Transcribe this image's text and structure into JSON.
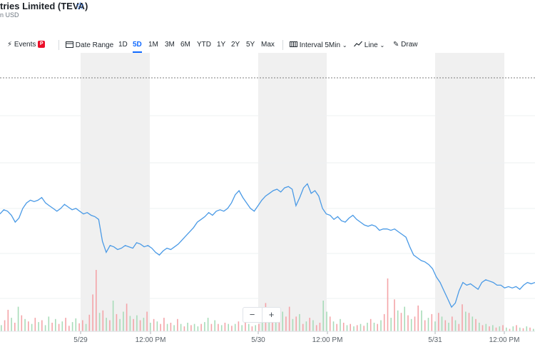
{
  "header": {
    "title": "tries Limited (TEVA)",
    "subtitle": "n USD"
  },
  "toolbar": {
    "events_label": "Events",
    "events_badge": "P",
    "date_range_label": "Date Range",
    "ranges": [
      "1D",
      "5D",
      "1M",
      "3M",
      "6M",
      "YTD",
      "1Y",
      "2Y",
      "5Y",
      "Max"
    ],
    "selected_range": "5D",
    "interval_label": "Interval",
    "interval_value": "5Min",
    "line_label": "Line",
    "draw_label": "Draw"
  },
  "zoom": {
    "minus": "−",
    "plus": "+"
  },
  "colors": {
    "line": "#4a9ae6",
    "up_volume": "#a8dcb9",
    "down_volume": "#f4a4a8",
    "shade": "#f0f0f0",
    "accent": "#0f69ff"
  },
  "chart_data": {
    "type": "line",
    "x_ticks": [
      "5/29",
      "12:00 PM",
      "5/30",
      "12:00 PM",
      "5/31",
      "12:00 PM"
    ],
    "price_series": [
      0.7,
      0.73,
      0.72,
      0.69,
      0.64,
      0.67,
      0.74,
      0.78,
      0.8,
      0.79,
      0.8,
      0.82,
      0.78,
      0.76,
      0.74,
      0.72,
      0.74,
      0.77,
      0.75,
      0.73,
      0.74,
      0.72,
      0.7,
      0.71,
      0.69,
      0.68,
      0.66,
      0.5,
      0.42,
      0.47,
      0.46,
      0.44,
      0.45,
      0.47,
      0.46,
      0.45,
      0.49,
      0.48,
      0.46,
      0.47,
      0.45,
      0.42,
      0.4,
      0.43,
      0.45,
      0.44,
      0.46,
      0.48,
      0.51,
      0.54,
      0.57,
      0.6,
      0.64,
      0.66,
      0.68,
      0.71,
      0.69,
      0.72,
      0.73,
      0.72,
      0.74,
      0.78,
      0.84,
      0.87,
      0.82,
      0.78,
      0.74,
      0.72,
      0.76,
      0.8,
      0.83,
      0.85,
      0.87,
      0.88,
      0.86,
      0.89,
      0.9,
      0.88,
      0.76,
      0.82,
      0.89,
      0.92,
      0.85,
      0.87,
      0.83,
      0.74,
      0.7,
      0.69,
      0.66,
      0.68,
      0.65,
      0.64,
      0.67,
      0.69,
      0.66,
      0.64,
      0.62,
      0.61,
      0.62,
      0.61,
      0.58,
      0.59,
      0.59,
      0.58,
      0.59,
      0.57,
      0.55,
      0.53,
      0.46,
      0.4,
      0.38,
      0.36,
      0.35,
      0.33,
      0.3,
      0.24,
      0.2,
      0.14,
      0.08,
      0.02,
      0.05,
      0.14,
      0.2,
      0.18,
      0.19,
      0.17,
      0.15,
      0.2,
      0.22,
      0.21,
      0.2,
      0.18,
      0.18,
      0.16,
      0.17,
      0.16,
      0.17,
      0.15,
      0.18,
      0.2,
      0.19,
      0.2
    ],
    "volume_series": [
      [
        0.1,
        1
      ],
      [
        0.18,
        0
      ],
      [
        0.35,
        0
      ],
      [
        0.22,
        1
      ],
      [
        0.14,
        0
      ],
      [
        0.4,
        1
      ],
      [
        0.26,
        0
      ],
      [
        0.2,
        1
      ],
      [
        0.16,
        0
      ],
      [
        0.12,
        1
      ],
      [
        0.22,
        0
      ],
      [
        0.15,
        1
      ],
      [
        0.18,
        0
      ],
      [
        0.1,
        1
      ],
      [
        0.24,
        1
      ],
      [
        0.14,
        0
      ],
      [
        0.2,
        1
      ],
      [
        0.12,
        0
      ],
      [
        0.16,
        1
      ],
      [
        0.22,
        0
      ],
      [
        0.09,
        0
      ],
      [
        0.15,
        1
      ],
      [
        0.21,
        1
      ],
      [
        0.13,
        0
      ],
      [
        0.18,
        0
      ],
      [
        0.12,
        1
      ],
      [
        0.27,
        0
      ],
      [
        0.6,
        0
      ],
      [
        1.0,
        0
      ],
      [
        0.3,
        1
      ],
      [
        0.34,
        0
      ],
      [
        0.22,
        1
      ],
      [
        0.18,
        0
      ],
      [
        0.5,
        1
      ],
      [
        0.28,
        0
      ],
      [
        0.2,
        1
      ],
      [
        0.32,
        1
      ],
      [
        0.45,
        0
      ],
      [
        0.25,
        1
      ],
      [
        0.2,
        0
      ],
      [
        0.26,
        1
      ],
      [
        0.18,
        0
      ],
      [
        0.22,
        1
      ],
      [
        0.32,
        0
      ],
      [
        0.14,
        1
      ],
      [
        0.2,
        0
      ],
      [
        0.16,
        1
      ],
      [
        0.12,
        0
      ],
      [
        0.22,
        0
      ],
      [
        0.12,
        1
      ],
      [
        0.14,
        0
      ],
      [
        0.1,
        1
      ],
      [
        0.2,
        0
      ],
      [
        0.12,
        1
      ],
      [
        0.08,
        0
      ],
      [
        0.14,
        1
      ],
      [
        0.1,
        0
      ],
      [
        0.12,
        1
      ],
      [
        0.08,
        1
      ],
      [
        0.12,
        0
      ],
      [
        0.15,
        1
      ],
      [
        0.22,
        1
      ],
      [
        0.12,
        0
      ],
      [
        0.18,
        1
      ],
      [
        0.12,
        0
      ],
      [
        0.1,
        1
      ],
      [
        0.14,
        0
      ],
      [
        0.12,
        1
      ],
      [
        0.09,
        0
      ],
      [
        0.12,
        1
      ],
      [
        0.16,
        0
      ],
      [
        0.1,
        1
      ],
      [
        0.14,
        0
      ],
      [
        0.12,
        1
      ],
      [
        0.08,
        0
      ],
      [
        0.1,
        1
      ],
      [
        0.12,
        0
      ],
      [
        0.14,
        1
      ],
      [
        0.46,
        0
      ],
      [
        0.3,
        1
      ],
      [
        0.22,
        0
      ],
      [
        0.28,
        1
      ],
      [
        0.2,
        0
      ],
      [
        0.32,
        1
      ],
      [
        0.24,
        0
      ],
      [
        0.4,
        0
      ],
      [
        0.2,
        1
      ],
      [
        0.24,
        0
      ],
      [
        0.28,
        1
      ],
      [
        0.12,
        0
      ],
      [
        0.16,
        1
      ],
      [
        0.22,
        0
      ],
      [
        0.18,
        1
      ],
      [
        0.1,
        0
      ],
      [
        0.14,
        0
      ],
      [
        0.5,
        1
      ],
      [
        0.32,
        1
      ],
      [
        0.24,
        0
      ],
      [
        0.16,
        1
      ],
      [
        0.12,
        0
      ],
      [
        0.2,
        1
      ],
      [
        0.14,
        0
      ],
      [
        0.1,
        1
      ],
      [
        0.12,
        0
      ],
      [
        0.08,
        1
      ],
      [
        0.1,
        0
      ],
      [
        0.12,
        1
      ],
      [
        0.09,
        0
      ],
      [
        0.14,
        1
      ],
      [
        0.2,
        0
      ],
      [
        0.14,
        1
      ],
      [
        0.12,
        0
      ],
      [
        0.18,
        1
      ],
      [
        0.28,
        0
      ],
      [
        0.86,
        0
      ],
      [
        0.22,
        1
      ],
      [
        0.52,
        0
      ],
      [
        0.34,
        1
      ],
      [
        0.3,
        0
      ],
      [
        0.4,
        1
      ],
      [
        0.26,
        0
      ],
      [
        0.2,
        1
      ],
      [
        0.24,
        0
      ],
      [
        0.42,
        0
      ],
      [
        0.34,
        1
      ],
      [
        0.18,
        0
      ],
      [
        0.22,
        1
      ],
      [
        0.28,
        0
      ],
      [
        0.16,
        1
      ],
      [
        0.3,
        0
      ],
      [
        0.24,
        1
      ],
      [
        0.18,
        0
      ],
      [
        0.14,
        1
      ],
      [
        0.24,
        0
      ],
      [
        0.18,
        1
      ],
      [
        0.12,
        0
      ],
      [
        0.44,
        0
      ],
      [
        0.32,
        1
      ],
      [
        0.3,
        0
      ],
      [
        0.24,
        1
      ],
      [
        0.2,
        0
      ],
      [
        0.14,
        1
      ],
      [
        0.1,
        0
      ],
      [
        0.12,
        1
      ],
      [
        0.08,
        0
      ],
      [
        0.1,
        1
      ],
      [
        0.06,
        0
      ],
      [
        0.08,
        1
      ],
      [
        0.1,
        0
      ],
      [
        0.06,
        1
      ],
      [
        0.04,
        0
      ],
      [
        0.08,
        1
      ],
      [
        0.1,
        0
      ],
      [
        0.06,
        1
      ],
      [
        0.05,
        0
      ],
      [
        0.08,
        1
      ],
      [
        0.06,
        0
      ],
      [
        0.04,
        1
      ]
    ]
  }
}
